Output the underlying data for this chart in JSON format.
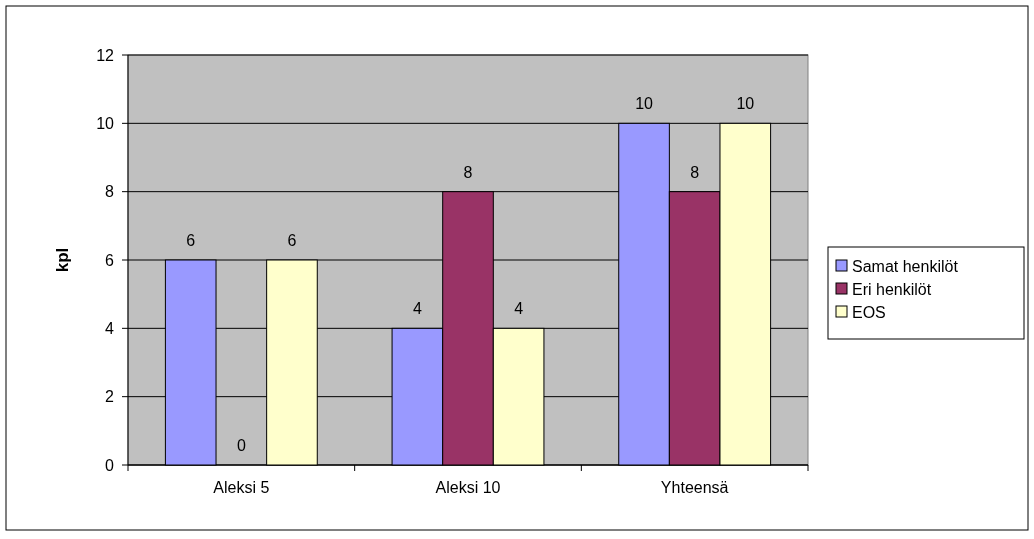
{
  "chart_data": {
    "type": "bar",
    "ylabel": "kpl",
    "categories": [
      "Aleksi 5",
      "Aleksi 10",
      "Yhteensä"
    ],
    "series": [
      {
        "name": "Samat henkilöt",
        "color": "#9999ff",
        "values": [
          6,
          4,
          10
        ]
      },
      {
        "name": "Eri henkilöt",
        "color": "#993366",
        "values": [
          0,
          8,
          8
        ]
      },
      {
        "name": "EOS",
        "color": "#ffffcc",
        "values": [
          6,
          4,
          10
        ]
      }
    ],
    "ylim": [
      0,
      12
    ],
    "yticks": [
      0,
      2,
      4,
      6,
      8,
      10,
      12
    ],
    "grid": "y",
    "legend": "right",
    "data_labels": true
  }
}
